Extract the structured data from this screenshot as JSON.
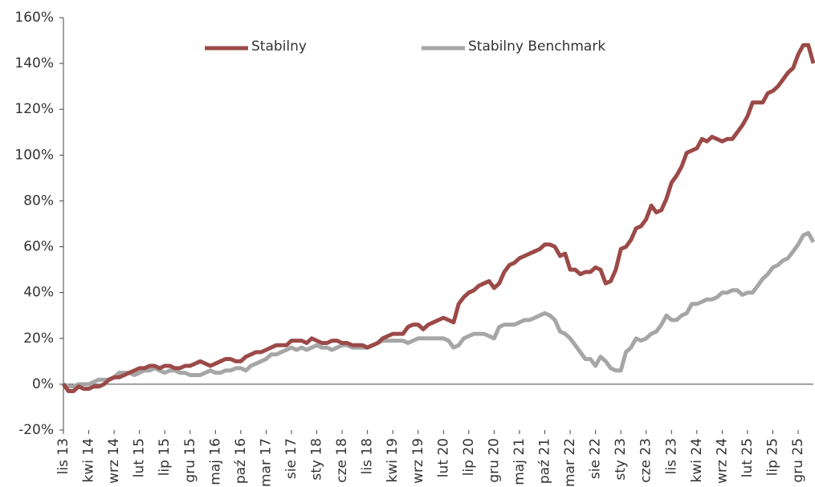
{
  "chart_data": {
    "type": "line",
    "categories": [
      "lis 13",
      null,
      null,
      null,
      null,
      "kwi 14",
      null,
      null,
      null,
      null,
      "wrz 14",
      null,
      null,
      null,
      null,
      "lut 15",
      null,
      null,
      null,
      null,
      "lip 15",
      null,
      null,
      null,
      null,
      "gru 15",
      null,
      null,
      null,
      null,
      "maj 16",
      null,
      null,
      null,
      null,
      "paź 16",
      null,
      null,
      null,
      null,
      "mar 17",
      null,
      null,
      null,
      null,
      "sie 17",
      null,
      null,
      null,
      null,
      "sty 18",
      null,
      null,
      null,
      null,
      "cze 18",
      null,
      null,
      null,
      null,
      "lis 18",
      null,
      null,
      null,
      null,
      "kwi 19",
      null,
      null,
      null,
      null,
      "wrz 19",
      null,
      null,
      null,
      null,
      "lut 20",
      null,
      null,
      null,
      null,
      "lip 20",
      null,
      null,
      null,
      null,
      "gru 20",
      null,
      null,
      null,
      null,
      "maj 21",
      null,
      null,
      null,
      null,
      "paź 21",
      null,
      null,
      null,
      null,
      "mar 22",
      null,
      null,
      null,
      null,
      "sie 22",
      null,
      null,
      null,
      null,
      "sty 23",
      null,
      null,
      null,
      null,
      "cze 23",
      null,
      null,
      null,
      null,
      "lis 23",
      null,
      null,
      null,
      null,
      "kwi 24",
      null,
      null,
      null,
      null,
      "wrz 24",
      null,
      null,
      null,
      null,
      "lut 25",
      null,
      null,
      null,
      null,
      "lip 25",
      null,
      null,
      null,
      null,
      "gru 25",
      null,
      null,
      null
    ],
    "series": [
      {
        "name": "Stabilny",
        "color": "#9b4a48",
        "values": [
          0,
          -3,
          -3,
          -1,
          -2,
          -2,
          -1,
          -1,
          0,
          2,
          3,
          3,
          4,
          5,
          6,
          7,
          7,
          8,
          8,
          7,
          8,
          8,
          7,
          7,
          8,
          8,
          9,
          10,
          9,
          8,
          9,
          10,
          11,
          11,
          10,
          10,
          12,
          13,
          14,
          14,
          15,
          16,
          17,
          17,
          17,
          19,
          19,
          19,
          18,
          20,
          19,
          18,
          18,
          19,
          19,
          18,
          18,
          17,
          17,
          17,
          16,
          17,
          18,
          20,
          21,
          22,
          22,
          22,
          25,
          26,
          26,
          24,
          26,
          27,
          28,
          29,
          28,
          27,
          35,
          38,
          40,
          41,
          43,
          44,
          45,
          42,
          44,
          49,
          52,
          53,
          55,
          56,
          57,
          58,
          59,
          61,
          61,
          60,
          56,
          57,
          50,
          50,
          48,
          49,
          49,
          51,
          50,
          44,
          45,
          50,
          59,
          60,
          63,
          68,
          69,
          72,
          78,
          75,
          76,
          81,
          88,
          91,
          95,
          101,
          102,
          103,
          107,
          106,
          108,
          107,
          106,
          107,
          107,
          110,
          113,
          117,
          123,
          123,
          123,
          127,
          128,
          130,
          133,
          136,
          138,
          144,
          148,
          148,
          140
        ]
      },
      {
        "name": "Stabilny Benchmark",
        "color": "#a6a6a6",
        "values": [
          0,
          -1,
          -1,
          0,
          0,
          0,
          1,
          2,
          2,
          2,
          3,
          5,
          5,
          5,
          4,
          5,
          6,
          6,
          7,
          6,
          5,
          6,
          6,
          5,
          5,
          4,
          4,
          4,
          5,
          6,
          5,
          5,
          6,
          6,
          7,
          7,
          6,
          8,
          9,
          10,
          11,
          13,
          13,
          14,
          15,
          16,
          15,
          16,
          15,
          16,
          17,
          16,
          16,
          15,
          16,
          17,
          17,
          16,
          16,
          16,
          16,
          17,
          18,
          19,
          19,
          19,
          19,
          19,
          18,
          19,
          20,
          20,
          20,
          20,
          20,
          20,
          19,
          16,
          17,
          20,
          21,
          22,
          22,
          22,
          21,
          20,
          25,
          26,
          26,
          26,
          27,
          28,
          28,
          29,
          30,
          31,
          30,
          28,
          23,
          22,
          20,
          17,
          14,
          11,
          11,
          8,
          12,
          10,
          7,
          6,
          6,
          14,
          16,
          20,
          19,
          20,
          22,
          23,
          26,
          30,
          28,
          28,
          30,
          31,
          35,
          35,
          36,
          37,
          37,
          38,
          40,
          40,
          41,
          41,
          39,
          40,
          40,
          43,
          46,
          48,
          51,
          52,
          54,
          55,
          58,
          61,
          65,
          66,
          62
        ]
      }
    ],
    "ylim": [
      -20,
      160
    ],
    "yticks": [
      {
        "value": -20,
        "label": "-20%"
      },
      {
        "value": 0,
        "label": "0%"
      },
      {
        "value": 20,
        "label": "20%"
      },
      {
        "value": 40,
        "label": "40%"
      },
      {
        "value": 60,
        "label": "60%"
      },
      {
        "value": 80,
        "label": "80%"
      },
      {
        "value": 100,
        "label": "100%"
      },
      {
        "value": 120,
        "label": "120%"
      },
      {
        "value": 140,
        "label": "140%"
      },
      {
        "value": 160,
        "label": "160%"
      }
    ],
    "legend": "top"
  }
}
